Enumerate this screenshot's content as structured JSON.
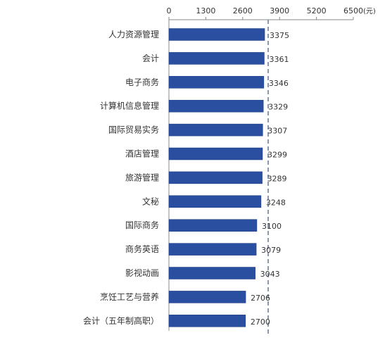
{
  "chart_data": {
    "type": "bar",
    "orientation": "horizontal",
    "categories": [
      "人力资源管理",
      "会计",
      "电子商务",
      "计算机信息管理",
      "国际贸易实务",
      "酒店管理",
      "旅游管理",
      "文秘",
      "国际商务",
      "商务英语",
      "影视动画",
      "烹饪工艺与营养",
      "会计（五年制高职）"
    ],
    "values": [
      3375,
      3361,
      3346,
      3329,
      3307,
      3299,
      3289,
      3248,
      3100,
      3079,
      3043,
      2706,
      2700
    ],
    "value_labels": [
      "3375",
      "3361",
      "3346",
      "3329",
      "3307",
      "3299",
      "3289",
      "3248",
      "3100",
      "3079",
      "3043",
      "2706",
      "2700"
    ],
    "xticks": [
      0,
      1300,
      2600,
      3900,
      5200,
      6500
    ],
    "xtick_labels": [
      "0",
      "1300",
      "2600",
      "3900",
      "5200",
      "6500"
    ],
    "xlim": [
      0,
      6500
    ],
    "unit": "(元)",
    "reference_line": 3498,
    "axis_position": "top",
    "legend": "none",
    "grid": false,
    "colors": {
      "bar": "#2a4fa0",
      "bar_edge": "#1b3a80",
      "reference_line": "#6f7f99",
      "axis": "#888888"
    }
  }
}
